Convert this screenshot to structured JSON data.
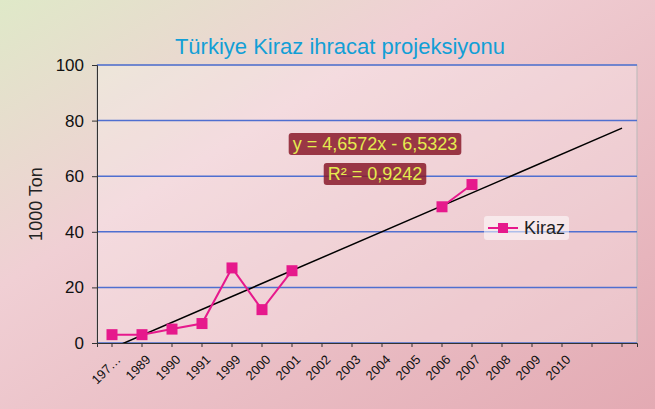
{
  "chart_data": {
    "type": "line",
    "title": "Türkiye Kiraz ihracat projeksiyonu",
    "y_label": "1000 Ton",
    "categories": [
      "197…",
      "1989",
      "1990",
      "1991",
      "1999",
      "2000",
      "2001",
      "2002",
      "2003",
      "2004",
      "2005",
      "2006",
      "2007",
      "2008",
      "2009",
      "2010",
      null,
      null
    ],
    "series": [
      {
        "name": "Kiraz",
        "color": "#e6198c",
        "marker": "square",
        "values": [
          3,
          3,
          5,
          7,
          27,
          12,
          26,
          null,
          null,
          null,
          null,
          49,
          57,
          null,
          null,
          null,
          null,
          null
        ]
      }
    ],
    "trendline": {
      "slope": 4.6572,
      "intercept": -6.5323,
      "color": "#000000"
    },
    "annotations": [
      "y = 4,6572x - 6,5323",
      "R² = 0,9242"
    ],
    "ylim": [
      0,
      100
    ],
    "yticks": [
      0,
      20,
      40,
      60,
      80,
      100
    ],
    "grid": true,
    "legend": "right"
  }
}
